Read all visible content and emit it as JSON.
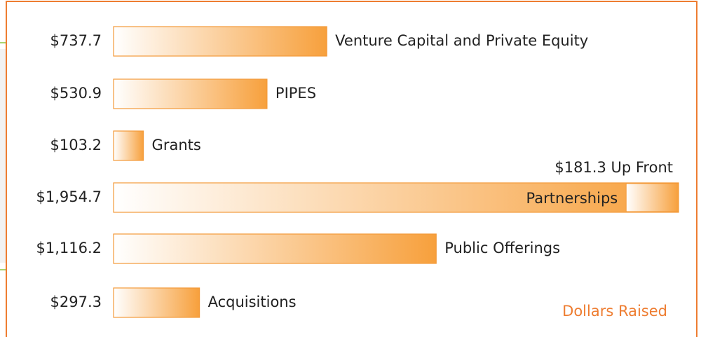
{
  "chart_data": {
    "type": "bar",
    "orientation": "horizontal",
    "categories": [
      "Venture Capital and Private Equity",
      "PIPES",
      "Grants",
      "Partnerships",
      "Public Offerings",
      "Acquisitions"
    ],
    "values": [
      737.7,
      530.9,
      103.2,
      1954.7,
      1116.2,
      297.3
    ],
    "value_labels": [
      "$737.7",
      "$530.9",
      "$103.2",
      "$1,954.7",
      "$1,116.2",
      "$297.3"
    ],
    "color": "#f7a03c",
    "up_front": {
      "category": 3,
      "value": 181.3,
      "label": "$181.3 Up Front"
    },
    "annotation": "Dollars Raised"
  }
}
